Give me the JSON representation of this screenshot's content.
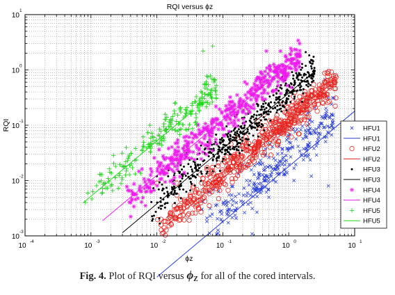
{
  "chart_data": {
    "type": "scatter",
    "title": "RQI versus ϕz",
    "xlabel": "ϕz",
    "ylabel": "RQI",
    "xscale": "log",
    "yscale": "log",
    "xlim": [
      0.0001,
      10
    ],
    "ylim": [
      0.001,
      10
    ],
    "grid": "dotted, on",
    "legend_position": "right, middle",
    "x_ticks": [
      {
        "base": "10",
        "exp": "-4"
      },
      {
        "base": "10",
        "exp": "-3"
      },
      {
        "base": "10",
        "exp": "-2"
      },
      {
        "base": "10",
        "exp": "-1"
      },
      {
        "base": "10",
        "exp": "0"
      },
      {
        "base": "10",
        "exp": "1"
      }
    ],
    "y_ticks": [
      {
        "base": "10",
        "exp": "-3"
      },
      {
        "base": "10",
        "exp": "-2"
      },
      {
        "base": "10",
        "exp": "-1"
      },
      {
        "base": "10",
        "exp": "0"
      },
      {
        "base": "10",
        "exp": "1"
      }
    ],
    "series": [
      {
        "name": "HFU1",
        "kind": "points",
        "marker": "x",
        "color": "#2a3fd6",
        "x_range": [
          0.045,
          5
        ],
        "slope": 1,
        "center_intercept": 0.03,
        "spread": 2.3,
        "count": 300,
        "points": [
          [
            0.12,
            0.003
          ],
          [
            0.5,
            0.005
          ],
          [
            1.2,
            0.01
          ],
          [
            2.2,
            0.012
          ],
          [
            4,
            0.008
          ],
          [
            0.3,
            0.009
          ]
        ]
      },
      {
        "name": "HFU1",
        "kind": "trend",
        "color": "#2a3fd6",
        "x_range": [
          0.01,
          10
        ],
        "slope": 1,
        "intercept": 0.018
      },
      {
        "name": "HFU2",
        "kind": "points",
        "marker": "o",
        "color": "#e8231e",
        "x_range": [
          0.01,
          5.5
        ],
        "slope": 1,
        "center_intercept": 0.13,
        "spread": 1.8,
        "count": 560,
        "points": [
          [
            0.01,
            0.009
          ],
          [
            0.02,
            0.009
          ],
          [
            5,
            0.6
          ]
        ]
      },
      {
        "name": "HFU2",
        "kind": "trend",
        "color": "#e8231e",
        "x_range": [
          0.015,
          5.5
        ],
        "slope": 1,
        "intercept": 0.11
      },
      {
        "name": "HFU3",
        "kind": "points",
        "marker": "dot",
        "color": "#000000",
        "x_range": [
          0.008,
          2.5
        ],
        "slope": 1,
        "center_intercept": 0.4,
        "spread": 1.8,
        "count": 520,
        "points": [
          [
            1.6,
            1.1
          ],
          [
            0.9,
            0.8
          ],
          [
            0.01,
            0.012
          ]
        ]
      },
      {
        "name": "HFU3",
        "kind": "trend",
        "color": "#000000",
        "x_range": [
          0.003,
          2.5
        ],
        "slope": 1,
        "intercept": 0.38
      },
      {
        "name": "HFU4",
        "kind": "points",
        "marker": "*",
        "color": "#ef1bef",
        "x_range": [
          0.0035,
          1.5
        ],
        "slope": 1,
        "center_intercept": 1.3,
        "spread": 1.8,
        "count": 500,
        "points": [
          [
            1.1,
            1.3
          ],
          [
            0.9,
            1.1
          ],
          [
            0.004,
            0.004
          ]
        ]
      },
      {
        "name": "HFU4",
        "kind": "trend",
        "color": "#ef1bef",
        "x_range": [
          0.0015,
          1.5
        ],
        "slope": 1,
        "intercept": 1.25
      },
      {
        "name": "HFU5",
        "kind": "points",
        "marker": "+",
        "color": "#24d61e",
        "x_range": [
          0.0008,
          0.08
        ],
        "slope": 1,
        "center_intercept": 6,
        "spread": 1.8,
        "count": 230,
        "points": [
          [
            0.07,
            2.7
          ],
          [
            0.05,
            2.2
          ],
          [
            0.002,
            0.008
          ],
          [
            0.0015,
            0.006
          ]
        ]
      },
      {
        "name": "HFU5",
        "kind": "trend",
        "color": "#24d61e",
        "x_range": [
          0.00075,
          0.03
        ],
        "slope": 1,
        "intercept": 5.2
      }
    ]
  },
  "caption": {
    "label": "Fig. 4.",
    "text_before": "Plot of RQI versus",
    "symbol": "ϕ",
    "subscript": "Z",
    "text_after": "for all of the cored intervals."
  }
}
